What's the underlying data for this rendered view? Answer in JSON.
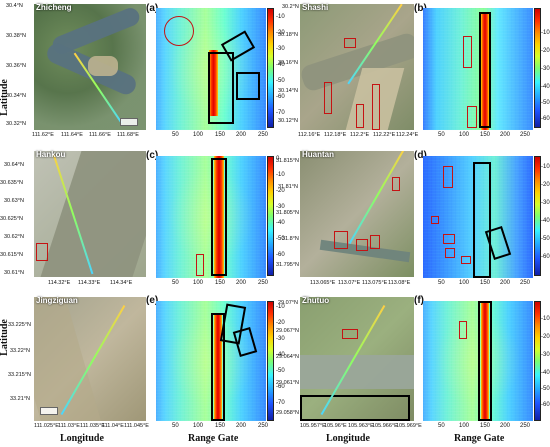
{
  "axis_labels": {
    "latitude": "Latitude",
    "longitude": "Longitude",
    "range_gate": "Range Gate"
  },
  "colorbar_ticks": [
    "-10",
    "-20",
    "-30",
    "-40",
    "-50",
    "-60",
    "-70"
  ],
  "colorbar_ticks_c": [
    "0",
    "-10",
    "-20",
    "-30",
    "-40",
    "-50",
    "-60"
  ],
  "panels": [
    {
      "site": "Zhicheng",
      "letter": "(a)",
      "lat_ticks": [
        "30.4°N",
        "30.38°N",
        "30.36°N",
        "30.34°N",
        "30.32°N"
      ],
      "lon_ticks": [
        "111.62°E",
        "111.64°E",
        "111.66°E",
        "111.68°E"
      ],
      "range_ticks": [
        "50",
        "100",
        "150",
        "200",
        "250"
      ]
    },
    {
      "site": "Shashi",
      "letter": "(b)",
      "lat_ticks": [
        "30.2°N",
        "30.18°N",
        "30.16°N",
        "30.14°N",
        "30.12°N"
      ],
      "lon_ticks": [
        "112.16°E",
        "112.18°E",
        "112.2°E",
        "112.22°E",
        "112.24°E"
      ],
      "range_ticks": [
        "50",
        "100",
        "150",
        "200",
        "250"
      ]
    },
    {
      "site": "Hankou",
      "letter": "(c)",
      "lat_ticks": [
        "30.64°N",
        "30.635°N",
        "30.63°N",
        "30.625°N",
        "30.62°N",
        "30.615°N",
        "30.61°N"
      ],
      "lon_ticks": [
        "114.32°E",
        "114.33°E",
        "114.34°E"
      ],
      "range_ticks": [
        "50",
        "100",
        "150",
        "200",
        "250"
      ]
    },
    {
      "site": "Huantan",
      "letter": "(d)",
      "lat_ticks": [
        "31.815°N",
        "31.81°N",
        "31.805°N",
        "31.8°N",
        "31.795°N"
      ],
      "lon_ticks": [
        "113.065°E",
        "113.07°E",
        "113.075°E",
        "113.08°E"
      ],
      "range_ticks": [
        "50",
        "100",
        "150",
        "200",
        "250"
      ]
    },
    {
      "site": "Jingziguan",
      "letter": "(e)",
      "lat_ticks": [
        "33.225°N",
        "33.22°N",
        "33.215°N",
        "33.21°N"
      ],
      "lon_ticks": [
        "111.025°E",
        "111.03°E",
        "111.035°E",
        "111.04°E",
        "111.045°E"
      ],
      "range_ticks": [
        "50",
        "100",
        "150",
        "200",
        "250"
      ]
    },
    {
      "site": "Zhutuo",
      "letter": "(f)",
      "lat_ticks": [
        "29.07°N",
        "29.067°N",
        "29.064°N",
        "29.061°N",
        "29.058°N"
      ],
      "lon_ticks": [
        "105.957°E",
        "105.96°E",
        "105.963°E",
        "105.966°E",
        "105.969°E"
      ],
      "range_ticks": [
        "50",
        "100",
        "150",
        "200",
        "250"
      ]
    }
  ]
}
